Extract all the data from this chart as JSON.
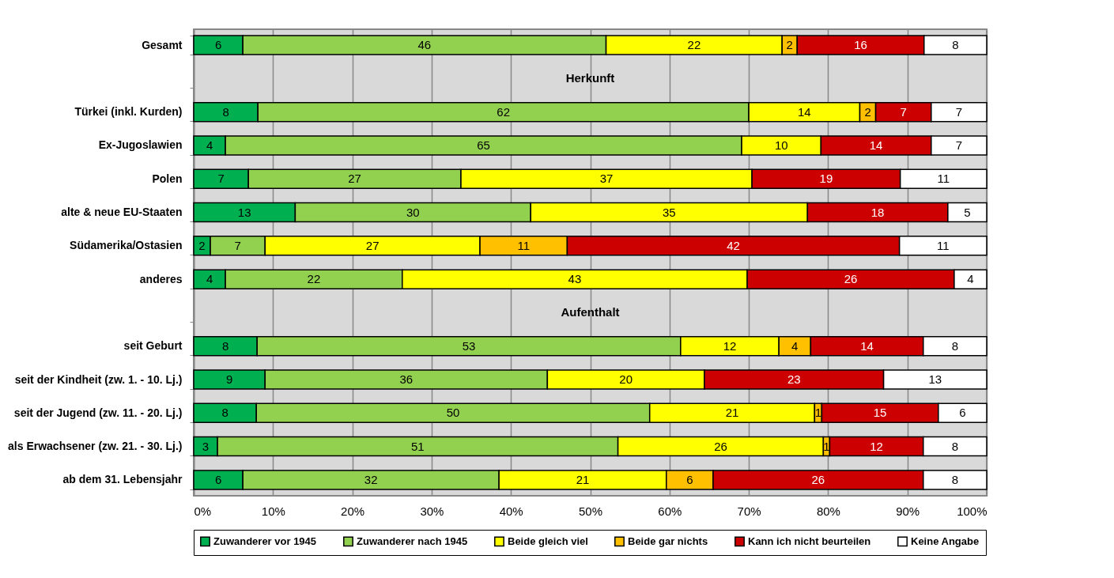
{
  "chart_data": {
    "type": "bar",
    "orientation": "horizontal",
    "stacked": true,
    "categories": [
      "Gesamt",
      null,
      "Türkei (inkl. Kurden)",
      "Ex-Jugoslawien",
      "Polen",
      "alte & neue EU-Staaten",
      "Südamerika/Ostasien",
      "anderes",
      null,
      "seit Geburt",
      "seit der Kindheit (zw. 1. - 10. Lj.)",
      "seit der Jugend (zw. 11. - 20. Lj.)",
      "als Erwachsener  (zw. 21. - 30. Lj.)",
      "ab dem 31. Lebensjahr"
    ],
    "series": [
      {
        "name": "Zuwanderer vor 1945",
        "color": "#00b050",
        "values": [
          6.2,
          null,
          8.1,
          4.0,
          6.9,
          12.8,
          2.1,
          4.0,
          null,
          8.0,
          9.0,
          7.9,
          3.0,
          6.2
        ],
        "value_labels": [
          "6",
          null,
          "8",
          "4",
          "7",
          "13",
          "2",
          "4",
          null,
          "8",
          "9",
          "8",
          "3",
          "6"
        ]
      },
      {
        "name": "Zuwanderer nach 1945",
        "color": "#92d050",
        "values": [
          45.8,
          null,
          61.9,
          65.1,
          26.8,
          29.7,
          6.9,
          22.3,
          null,
          53.4,
          35.6,
          49.6,
          50.5,
          32.3
        ],
        "value_labels": [
          "46",
          null,
          "62",
          "65",
          "27",
          "30",
          "7",
          "22",
          null,
          "53",
          "36",
          "50",
          "51",
          "32"
        ]
      },
      {
        "name": "Beide gleich viel",
        "color": "#ffff00",
        "values": [
          22.2,
          null,
          14.0,
          10.0,
          36.7,
          34.9,
          27.1,
          43.5,
          null,
          12.4,
          19.8,
          20.8,
          25.9,
          21.1
        ],
        "value_labels": [
          "22",
          null,
          "14",
          "10",
          "37",
          "35",
          "27",
          "43",
          null,
          "12",
          "20",
          "21",
          "26",
          "21"
        ]
      },
      {
        "name": "Beide gar nichts",
        "color": "#ffc000",
        "values": [
          1.9,
          null,
          2.0,
          null,
          null,
          null,
          11.0,
          null,
          null,
          4.0,
          null,
          0.9,
          0.8,
          5.9
        ],
        "value_labels": [
          "2",
          null,
          "2",
          null,
          null,
          null,
          "11",
          null,
          null,
          "4",
          null,
          "1",
          "1",
          "6"
        ]
      },
      {
        "name": "Kann ich nicht beurteilen",
        "color": "#cc0000",
        "values": [
          16.0,
          null,
          7.0,
          13.9,
          18.7,
          17.7,
          41.9,
          26.1,
          null,
          14.2,
          22.6,
          14.7,
          11.8,
          26.5
        ],
        "value_labels": [
          "16",
          null,
          "7",
          "14",
          "19",
          "18",
          "42",
          "26",
          null,
          "14",
          "23",
          "15",
          "12",
          "26"
        ]
      },
      {
        "name": "Keine Angabe",
        "color": "#ffffff",
        "values": [
          7.9,
          null,
          7.0,
          7.0,
          10.9,
          4.9,
          11.0,
          4.1,
          null,
          8.0,
          13.0,
          6.1,
          8.0,
          8.0
        ],
        "value_labels": [
          "8",
          null,
          "7",
          "7",
          "11",
          "5",
          "11",
          "4",
          null,
          "8",
          "13",
          "6",
          "8",
          "8"
        ]
      }
    ],
    "xlim": [
      0,
      100
    ],
    "xticks": [
      {
        "value": 0,
        "label": "0%"
      },
      {
        "value": 10,
        "label": "10%"
      },
      {
        "value": 20,
        "label": "20%"
      },
      {
        "value": 30,
        "label": "30%"
      },
      {
        "value": 40,
        "label": "40%"
      },
      {
        "value": 50,
        "label": "50%"
      },
      {
        "value": 60,
        "label": "60%"
      },
      {
        "value": 70,
        "label": "70%"
      },
      {
        "value": 80,
        "label": "80%"
      },
      {
        "value": 90,
        "label": "90%"
      },
      {
        "value": 100,
        "label": "100%"
      }
    ],
    "grid": "x",
    "legend": "bottom",
    "annotations": [
      "Herkunft",
      "Aufenthalt"
    ]
  }
}
